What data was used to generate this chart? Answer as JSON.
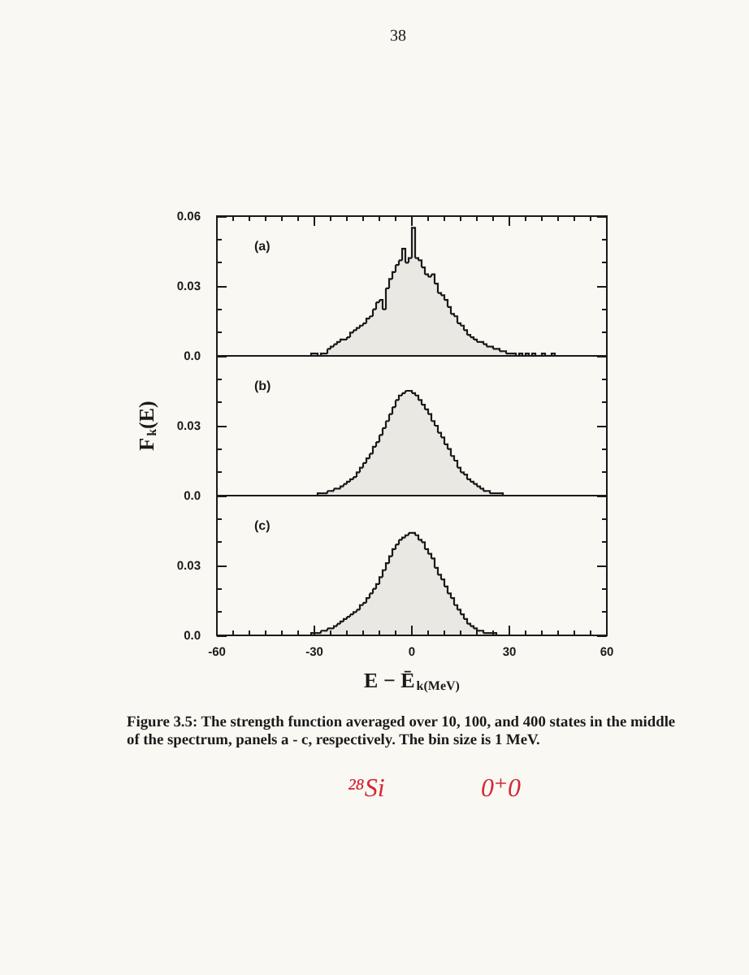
{
  "chart_data": [
    {
      "type": "histogram",
      "color": "#1a1a1a",
      "bins": [
        -31,
        -30,
        -29,
        -28,
        -27,
        -26,
        -25,
        -24,
        -23,
        -22,
        -21,
        -20,
        -19,
        -18,
        -17,
        -16,
        -15,
        -14,
        -13,
        -12,
        -11,
        -10,
        -9,
        -8,
        -7,
        -6,
        -5,
        -4,
        -3,
        -2,
        -1,
        0,
        1,
        2,
        3,
        4,
        5,
        6,
        7,
        8,
        9,
        10,
        11,
        12,
        13,
        14,
        15,
        16,
        17,
        18,
        19,
        20,
        21,
        22,
        23,
        24,
        25,
        26,
        27,
        28,
        29,
        30,
        31,
        32,
        33,
        34,
        35,
        36,
        37,
        38,
        39,
        40,
        41,
        42,
        43,
        44
      ],
      "values": [
        0.001,
        0.001,
        0,
        0.001,
        0.001,
        0.003,
        0.004,
        0.005,
        0.006,
        0.007,
        0.007,
        0.008,
        0.01,
        0.011,
        0.012,
        0.013,
        0.014,
        0.016,
        0.017,
        0.02,
        0.023,
        0.024,
        0.02,
        0.029,
        0.033,
        0.036,
        0.039,
        0.041,
        0.046,
        0.04,
        0.042,
        0.055,
        0.042,
        0.041,
        0.038,
        0.035,
        0.034,
        0.035,
        0.031,
        0.027,
        0.026,
        0.024,
        0.021,
        0.018,
        0.017,
        0.014,
        0.013,
        0.011,
        0.009,
        0.008,
        0.007,
        0.006,
        0.006,
        0.005,
        0.004,
        0.004,
        0.003,
        0.003,
        0.002,
        0.002,
        0.001,
        0.001,
        0.001,
        0,
        0.001,
        0,
        0.001,
        0,
        0.001,
        0,
        0,
        0.001,
        0,
        0,
        0.001
      ],
      "xlim": [
        -60,
        60
      ],
      "xticks": [
        -60,
        {
          "value": -55,
          "label": null
        },
        {
          "value": -50,
          "label": null
        },
        {
          "value": -45,
          "label": null
        },
        {
          "value": -40,
          "label": null
        },
        {
          "value": -35,
          "label": null
        },
        -30,
        {
          "value": -25,
          "label": null
        },
        {
          "value": -20,
          "label": null
        },
        {
          "value": -15,
          "label": null
        },
        {
          "value": -10,
          "label": null
        },
        {
          "value": -5,
          "label": null
        },
        0,
        {
          "value": 5,
          "label": null
        },
        {
          "value": 10,
          "label": null
        },
        {
          "value": 15,
          "label": null
        },
        {
          "value": 20,
          "label": null
        },
        {
          "value": 25,
          "label": null
        },
        30,
        {
          "value": 35,
          "label": null
        },
        {
          "value": 40,
          "label": null
        },
        {
          "value": 45,
          "label": null
        },
        {
          "value": 50,
          "label": null
        },
        {
          "value": 55,
          "label": null
        },
        60
      ],
      "ylim": [
        0,
        0.06
      ],
      "yticks": [
        {
          "value": 0,
          "label": "0.0"
        },
        {
          "value": 0.01,
          "label": null
        },
        {
          "value": 0.02,
          "label": null
        },
        {
          "value": 0.03,
          "label": "0.03"
        },
        {
          "value": 0.04,
          "label": null
        },
        {
          "value": 0.05,
          "label": null
        },
        {
          "value": 0.06,
          "label": "0.06"
        }
      ],
      "tick_labels": "y",
      "annotations": [
        "38",
        "(a)"
      ]
    },
    {
      "type": "histogram",
      "color": "#1a1a1a",
      "bins": [
        -29,
        -28,
        -27,
        -26,
        -25,
        -24,
        -23,
        -22,
        -21,
        -20,
        -19,
        -18,
        -17,
        -16,
        -15,
        -14,
        -13,
        -12,
        -11,
        -10,
        -9,
        -8,
        -7,
        -6,
        -5,
        -4,
        -3,
        -2,
        -1,
        0,
        1,
        2,
        3,
        4,
        5,
        6,
        7,
        8,
        9,
        10,
        11,
        12,
        13,
        14,
        15,
        16,
        17,
        18,
        19,
        20,
        21,
        22,
        23,
        24,
        25,
        26,
        27,
        28
      ],
      "values": [
        0.001,
        0.001,
        0.001,
        0.002,
        0.002,
        0.003,
        0.003,
        0.004,
        0.005,
        0.006,
        0.007,
        0.008,
        0.01,
        0.012,
        0.014,
        0.016,
        0.018,
        0.021,
        0.023,
        0.026,
        0.029,
        0.032,
        0.035,
        0.038,
        0.041,
        0.043,
        0.044,
        0.045,
        0.045,
        0.044,
        0.043,
        0.041,
        0.039,
        0.037,
        0.035,
        0.032,
        0.03,
        0.027,
        0.025,
        0.022,
        0.02,
        0.017,
        0.015,
        0.012,
        0.01,
        0.009,
        0.007,
        0.006,
        0.005,
        0.004,
        0.003,
        0.002,
        0.002,
        0.001,
        0.001,
        0.001,
        0.001
      ],
      "xlim": [
        -60,
        60
      ],
      "ylim": [
        0,
        0.06
      ],
      "yticks": [
        {
          "value": 0,
          "label": "0.0"
        },
        {
          "value": 0.01,
          "label": null
        },
        {
          "value": 0.02,
          "label": null
        },
        {
          "value": 0.03,
          "label": "0.03"
        },
        {
          "value": 0.04,
          "label": null
        },
        {
          "value": 0.05,
          "label": null
        }
      ],
      "ylabel": "F$_{k}$(E)",
      "tick_labels": "y",
      "annotations": [
        "(b)"
      ]
    },
    {
      "type": "histogram",
      "color": "#1a1a1a",
      "bins": [
        -31,
        -30,
        -29,
        -28,
        -27,
        -26,
        -25,
        -24,
        -23,
        -22,
        -21,
        -20,
        -19,
        -18,
        -17,
        -16,
        -15,
        -14,
        -13,
        -12,
        -11,
        -10,
        -9,
        -8,
        -7,
        -6,
        -5,
        -4,
        -3,
        -2,
        -1,
        0,
        1,
        2,
        3,
        4,
        5,
        6,
        7,
        8,
        9,
        10,
        11,
        12,
        13,
        14,
        15,
        16,
        17,
        18,
        19,
        20,
        21,
        22,
        23,
        24,
        25,
        26
      ],
      "values": [
        0.001,
        0.001,
        0.001,
        0.002,
        0.002,
        0.003,
        0.003,
        0.004,
        0.005,
        0.006,
        0.007,
        0.008,
        0.009,
        0.01,
        0.011,
        0.013,
        0.014,
        0.016,
        0.018,
        0.02,
        0.022,
        0.025,
        0.028,
        0.031,
        0.034,
        0.037,
        0.039,
        0.041,
        0.042,
        0.043,
        0.044,
        0.044,
        0.043,
        0.041,
        0.04,
        0.037,
        0.035,
        0.033,
        0.029,
        0.026,
        0.024,
        0.021,
        0.018,
        0.016,
        0.013,
        0.011,
        0.009,
        0.007,
        0.005,
        0.004,
        0.003,
        0.002,
        0.002,
        0.001,
        0.001,
        0.001,
        0.001
      ],
      "xlim": [
        -60,
        60
      ],
      "xticks": [
        -60,
        {
          "value": -55,
          "label": null
        },
        {
          "value": -50,
          "label": null
        },
        {
          "value": -45,
          "label": null
        },
        {
          "value": -40,
          "label": null
        },
        {
          "value": -35,
          "label": null
        },
        -30,
        {
          "value": -25,
          "label": null
        },
        {
          "value": -20,
          "label": null
        },
        {
          "value": -15,
          "label": null
        },
        {
          "value": -10,
          "label": null
        },
        {
          "value": -5,
          "label": null
        },
        0,
        {
          "value": 5,
          "label": null
        },
        {
          "value": 10,
          "label": null
        },
        {
          "value": 15,
          "label": null
        },
        {
          "value": 20,
          "label": null
        },
        {
          "value": 25,
          "label": null
        },
        30,
        {
          "value": 35,
          "label": null
        },
        {
          "value": 40,
          "label": null
        },
        {
          "value": 45,
          "label": null
        },
        {
          "value": 50,
          "label": null
        },
        {
          "value": 55,
          "label": null
        },
        60
      ],
      "ylim": [
        0,
        0.06
      ],
      "yticks": [
        {
          "value": 0,
          "label": "0.0"
        },
        {
          "value": 0.01,
          "label": null
        },
        {
          "value": 0.02,
          "label": null
        },
        {
          "value": 0.03,
          "label": "0.03"
        },
        {
          "value": 0.04,
          "label": null
        },
        {
          "value": 0.05,
          "label": null
        }
      ],
      "xlabel": "E − Ē$_{k(MeV)}$",
      "annotations": [
        "(c)",
        "Figure 3.5: The strength function averaged over 10, 100, and 400 states in the middle of the spectrum, panels a - c, respectively. The bin size is 1 MeV.",
        "²⁸Si",
        "0⁺0"
      ]
    }
  ]
}
